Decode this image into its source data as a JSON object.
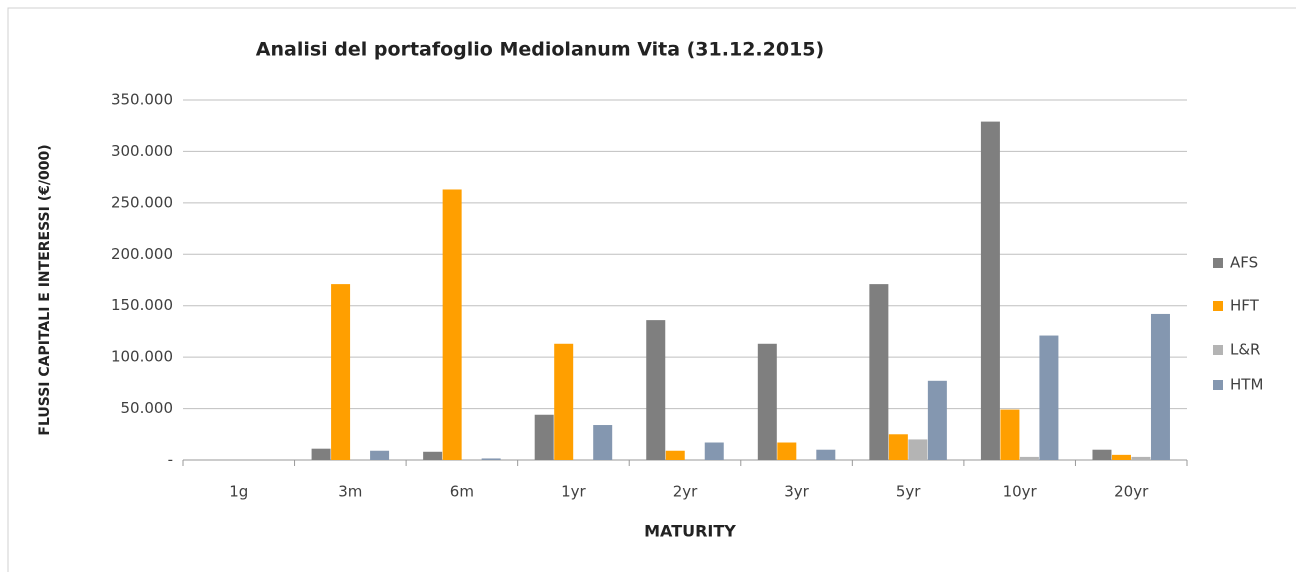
{
  "chart_data": {
    "type": "bar",
    "title": "Analisi  del portafoglio Mediolanum Vita  (31.12.2015)",
    "x_label": "MATURITY",
    "y_label": "FLUSSI CAPITALI E INTERESSI (€/000)",
    "categories": [
      "1g",
      "3m",
      "6m",
      "1yr",
      "2yr",
      "3yr",
      "5yr",
      "10yr",
      "20yr"
    ],
    "series": [
      {
        "name": "AFS",
        "color": "#7f7f7f",
        "values": [
          0,
          11000,
          8000,
          44000,
          136000,
          113000,
          171000,
          329000,
          10000
        ]
      },
      {
        "name": "HFT",
        "color": "#ff9f00",
        "values": [
          0,
          171000,
          263000,
          113000,
          9000,
          17000,
          25000,
          49000,
          5000
        ]
      },
      {
        "name": "L&R",
        "color": "#b4b4b4",
        "values": [
          0,
          0,
          0,
          0,
          0,
          0,
          20000,
          3000,
          3000
        ]
      },
      {
        "name": "HTM",
        "color": "#8497b0",
        "values": [
          0,
          9000,
          1500,
          34000,
          17000,
          10000,
          77000,
          121000,
          142000
        ]
      }
    ],
    "ylim": [
      0,
      350000
    ],
    "yticks": [
      {
        "value": 0,
        "label": "-"
      },
      {
        "value": 50000,
        "label": "50.000"
      },
      {
        "value": 100000,
        "label": "100.000"
      },
      {
        "value": 150000,
        "label": "150.000"
      },
      {
        "value": 200000,
        "label": "200.000"
      },
      {
        "value": 250000,
        "label": "250.000"
      },
      {
        "value": 300000,
        "label": "300.000"
      },
      {
        "value": 350000,
        "label": "350.000"
      }
    ],
    "grid": true,
    "legend": "right"
  }
}
